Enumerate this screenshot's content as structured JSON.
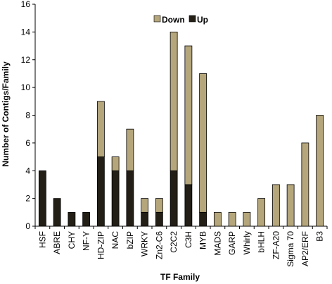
{
  "chart_data": {
    "type": "bar",
    "stacked": true,
    "categories": [
      "HSF",
      "ABRE",
      "CHY",
      "NF-Y",
      "HD-ZIP",
      "NAC",
      "bZIP",
      "WRKY",
      "Zn2-C6",
      "C2C2",
      "C3H",
      "MYB",
      "MADS",
      "GARP",
      "Whirly",
      "bHLH",
      "ZF-A20",
      "Sigma 70",
      "AP2/ERF",
      "B3"
    ],
    "series": [
      {
        "name": "Up",
        "color": "#231f16",
        "values": [
          4,
          2,
          1,
          1,
          5,
          4,
          4,
          1,
          1,
          4,
          3,
          1,
          0,
          0,
          0,
          0,
          0,
          0,
          0,
          0
        ]
      },
      {
        "name": "Down",
        "color": "#b5a67c",
        "values": [
          0,
          0,
          0,
          0,
          4,
          1,
          3,
          1,
          1,
          10,
          10,
          10,
          1,
          1,
          1,
          2,
          3,
          3,
          6,
          8
        ]
      }
    ],
    "legend_order": [
      "Down",
      "Up"
    ],
    "legend_position": "top-center",
    "xlabel": "TF Family",
    "ylabel": "Number of Contigs/Family",
    "ylim": [
      0,
      16
    ],
    "yticks": [
      0,
      2,
      4,
      6,
      8,
      10,
      12,
      14,
      16
    ],
    "grid": false
  }
}
